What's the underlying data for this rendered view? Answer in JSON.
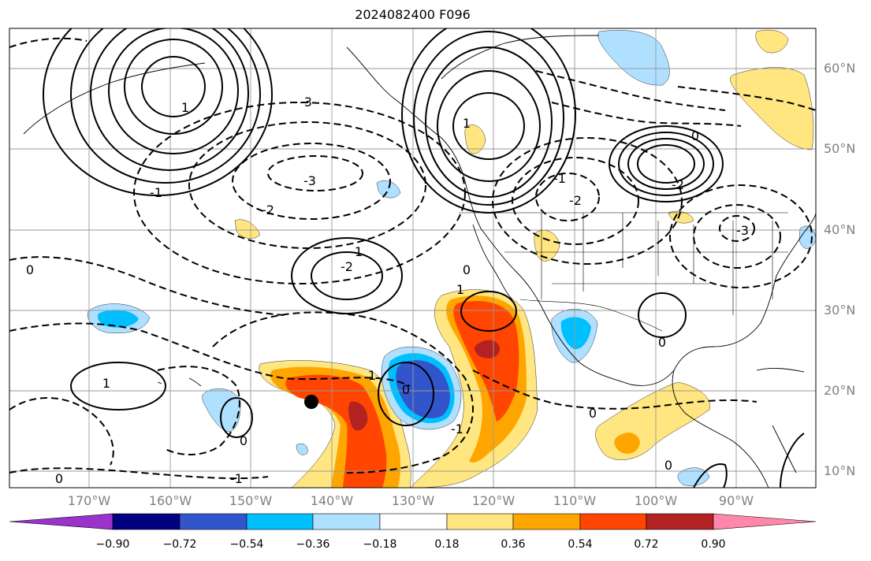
{
  "title": "2024082400 F096",
  "lat_labels": [
    "60°N",
    "50°N",
    "40°N",
    "30°N",
    "20°N",
    "10°N"
  ],
  "lon_labels": [
    "170°W",
    "160°W",
    "150°W",
    "140°W",
    "130°W",
    "120°W",
    "110°W",
    "100°W",
    "90°W"
  ],
  "contour_labels": [
    "-3",
    "-3",
    "-3",
    "-2",
    "-2",
    "-2",
    "-2",
    "-1",
    "-1",
    "-1",
    "-1",
    "0",
    "0",
    "0",
    "0",
    "0",
    "0",
    "0",
    "0",
    "0",
    "1",
    "1",
    "1",
    "1",
    "1",
    "1"
  ],
  "colorbar": {
    "tick_labels": [
      "−0.90",
      "−0.72",
      "−0.54",
      "−0.36",
      "−0.18",
      "0.18",
      "0.36",
      "0.54",
      "0.72",
      "0.90"
    ],
    "colors": [
      "#9933cc",
      "#000080",
      "#3355cc",
      "#00bfff",
      "#b0e0ff",
      "#ffffff",
      "#ffe680",
      "#ffa500",
      "#ff4500",
      "#b22222",
      "#ff88aa"
    ]
  }
}
